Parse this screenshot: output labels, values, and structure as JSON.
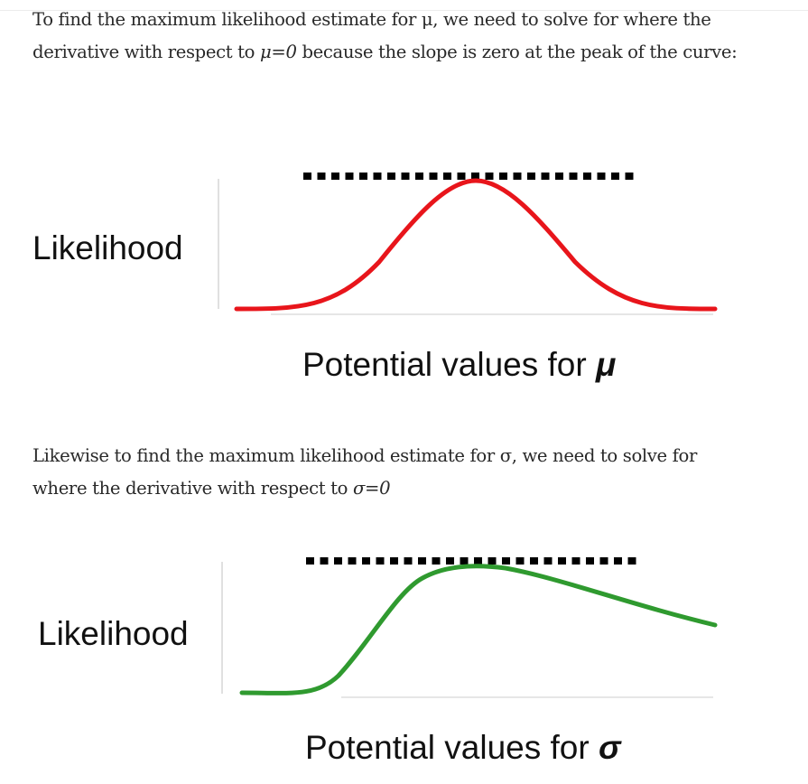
{
  "paragraph_1": {
    "before_mu": "To find the maximum likelihood estimate for μ, we need to solve for where the derivative with respect to ",
    "math": "μ=0",
    "after_mu": " because the slope is zero at the peak of the curve:"
  },
  "figure_1": {
    "ylabel": "Likelihood",
    "xlabel_text": "Potential values for ",
    "xlabel_symbol": "μ",
    "curve_color": "#e8151b",
    "peak_line_color": "#000000"
  },
  "paragraph_2": {
    "before_sigma": "Likewise to find the maximum likelihood estimate for σ, we need to solve for where the derivative with respect to ",
    "math": "σ=0"
  },
  "figure_2": {
    "ylabel": "Likelihood",
    "xlabel_text": "Potential values for ",
    "xlabel_symbol": "σ",
    "curve_color": "#2f9a2f",
    "peak_line_color": "#000000"
  }
}
